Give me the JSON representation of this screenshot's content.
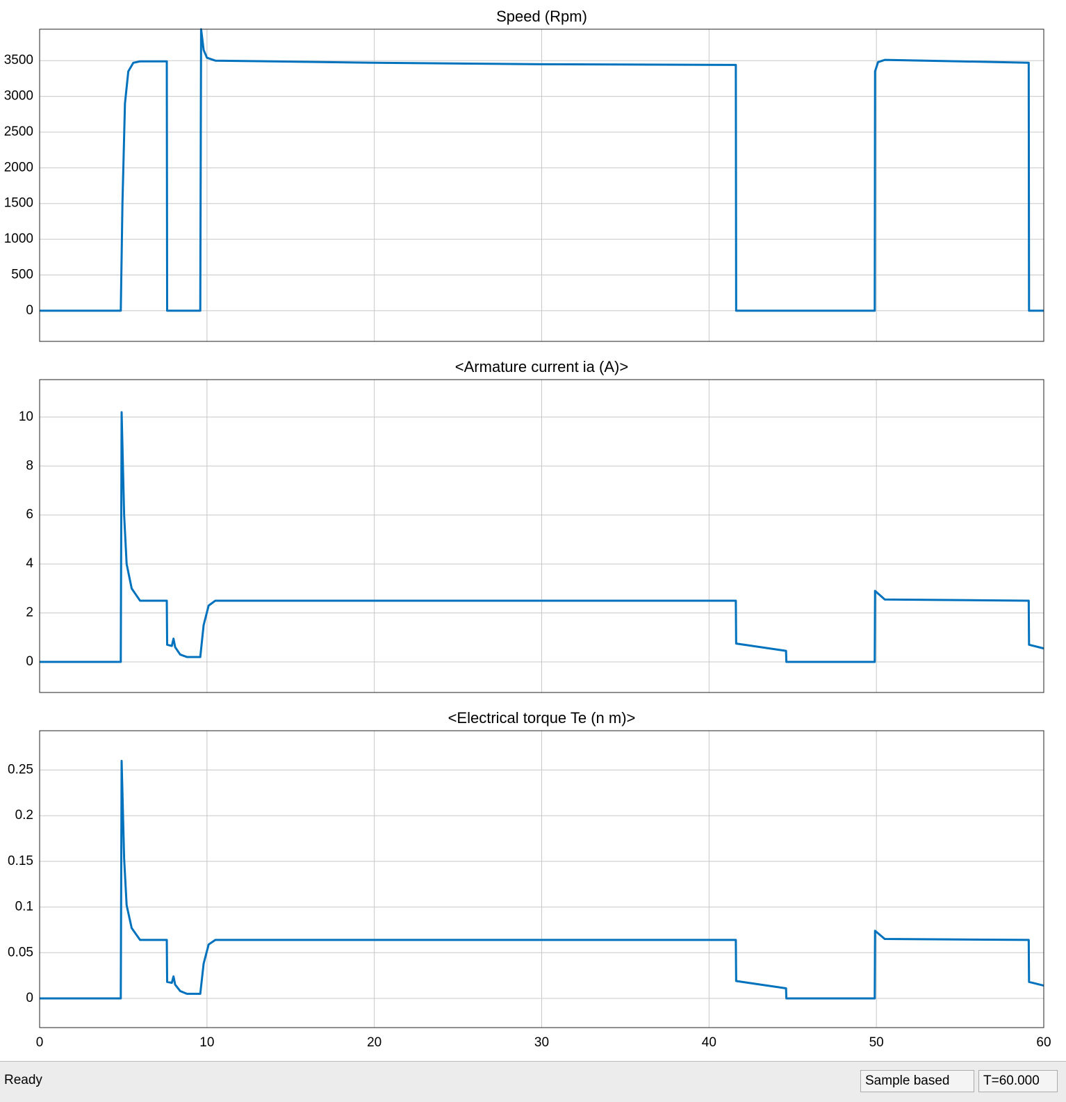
{
  "chart_data": [
    {
      "type": "line",
      "title": "Speed (Rpm)",
      "color": "#0072bd",
      "grid": true,
      "xlim": [
        0,
        60
      ],
      "xticks": [
        0,
        10,
        20,
        30,
        40,
        50,
        60
      ],
      "ylim": [
        -430,
        3940
      ],
      "yticks": [
        0,
        500,
        1000,
        1500,
        2000,
        2500,
        3000,
        3500
      ],
      "x": [
        0,
        4.85,
        4.95,
        5.1,
        5.3,
        5.6,
        6.0,
        7.6,
        7.62,
        9.6,
        9.65,
        9.8,
        10.0,
        10.5,
        20,
        30,
        41.6,
        41.62,
        49.9,
        49.92,
        50.1,
        50.5,
        55,
        59.1,
        59.12,
        60
      ],
      "values": [
        0,
        0,
        1500,
        2900,
        3350,
        3470,
        3490,
        3490,
        0,
        0,
        3940,
        3650,
        3540,
        3500,
        3470,
        3450,
        3440,
        0,
        0,
        3350,
        3480,
        3510,
        3490,
        3470,
        0,
        0
      ]
    },
    {
      "type": "line",
      "title": "<Armature current ia (A)>",
      "color": "#0072bd",
      "grid": true,
      "xlim": [
        0,
        60
      ],
      "xticks": [
        0,
        10,
        20,
        30,
        40,
        50,
        60
      ],
      "ylim": [
        -1.25,
        11.53
      ],
      "yticks": [
        0,
        2,
        4,
        6,
        8,
        10
      ],
      "x": [
        0,
        4.85,
        4.9,
        5.05,
        5.2,
        5.5,
        6.0,
        7.6,
        7.62,
        7.9,
        8.0,
        8.1,
        8.4,
        8.8,
        9.6,
        9.8,
        10.1,
        10.5,
        41.6,
        41.62,
        44.6,
        44.62,
        49.9,
        49.92,
        50.5,
        59.1,
        59.12,
        60
      ],
      "values": [
        0,
        0,
        10.2,
        6,
        4,
        3,
        2.5,
        2.5,
        0.7,
        0.65,
        0.95,
        0.6,
        0.3,
        0.2,
        0.2,
        1.5,
        2.3,
        2.5,
        2.5,
        0.75,
        0.45,
        0,
        0,
        2.9,
        2.55,
        2.5,
        0.7,
        0.55
      ]
    },
    {
      "type": "line",
      "title": "<Electrical torque Te (n m)>",
      "color": "#0072bd",
      "grid": true,
      "xlim": [
        0,
        60
      ],
      "xticks": [
        0,
        10,
        20,
        30,
        40,
        50,
        60
      ],
      "ylim": [
        -0.032,
        0.293
      ],
      "yticks": [
        0,
        0.05,
        0.1,
        0.15,
        0.2,
        0.25
      ],
      "x": [
        0,
        4.85,
        4.9,
        5.05,
        5.2,
        5.5,
        6.0,
        7.6,
        7.62,
        7.9,
        8.0,
        8.1,
        8.4,
        8.8,
        9.6,
        9.8,
        10.1,
        10.5,
        41.6,
        41.62,
        44.6,
        44.62,
        49.9,
        49.92,
        50.5,
        59.1,
        59.12,
        60
      ],
      "values": [
        0,
        0,
        0.26,
        0.153,
        0.102,
        0.077,
        0.064,
        0.064,
        0.018,
        0.017,
        0.024,
        0.015,
        0.008,
        0.005,
        0.005,
        0.038,
        0.059,
        0.064,
        0.064,
        0.019,
        0.011,
        0,
        0,
        0.074,
        0.065,
        0.064,
        0.018,
        0.014
      ]
    }
  ],
  "status_bar": {
    "state": "Ready",
    "mode": "Sample based",
    "time": "T=60.000"
  }
}
